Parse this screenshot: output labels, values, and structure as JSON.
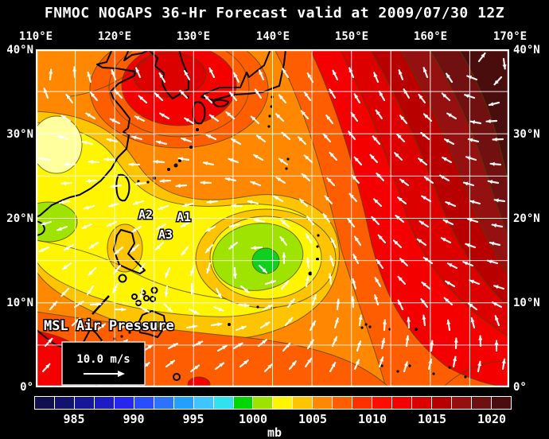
{
  "title": "FNMOC NOGAPS 36-Hr Forecast valid at 2009/07/30 12Z",
  "axes": {
    "top_longitude_labels": [
      "110°E",
      "120°E",
      "130°E",
      "140°E",
      "150°E",
      "160°E",
      "170°E"
    ],
    "left_latitude_labels": [
      "40°N",
      "30°N",
      "20°N",
      "10°N",
      "0°"
    ],
    "right_latitude_labels": [
      "40°N",
      "30°N",
      "20°N",
      "10°N",
      "0°"
    ]
  },
  "map": {
    "field_label": "MSL Air Pressure",
    "wind_scale_label": "10.0 m/s",
    "storm_labels": {
      "a1": "A1",
      "a2": "A2",
      "a3": "A3"
    }
  },
  "colorbar": {
    "unit": "mb",
    "tick_labels": [
      "985",
      "990",
      "995",
      "1000",
      "1005",
      "1010",
      "1015",
      "1020"
    ],
    "cell_colors": [
      "#10104e",
      "#12126f",
      "#161698",
      "#1c1cc4",
      "#2626ee",
      "#2a4cff",
      "#2d72ff",
      "#249fff",
      "#3ec5ff",
      "#2fe2ec",
      "#00d600",
      "#9ce400",
      "#fff500",
      "#ffc400",
      "#ff8800",
      "#ff5e00",
      "#ff3000",
      "#ff0e00",
      "#f40000",
      "#da0000",
      "#b60000",
      "#941010",
      "#6f1010",
      "#4a0d0d"
    ],
    "grid_color": "#ffffff",
    "wind_arrow_color": "#ffffff",
    "coastline_color": "#000000"
  }
}
